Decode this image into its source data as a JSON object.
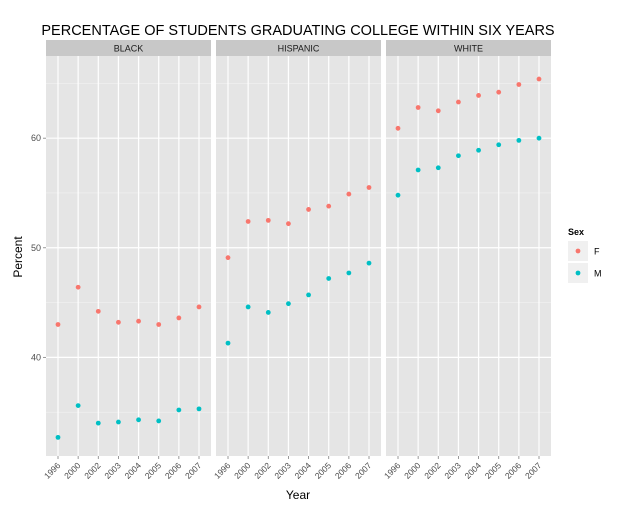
{
  "chart_data": {
    "type": "scatter",
    "title": "PERCENTAGE OF STUDENTS GRADUATING COLLEGE WITHIN SIX YEARS",
    "xlabel": "Year",
    "ylabel": "Percent",
    "ylim": [
      31,
      67.5
    ],
    "y_ticks": [
      40,
      50,
      60
    ],
    "x": [
      "1996",
      "2000",
      "2002",
      "2003",
      "2004",
      "2005",
      "2006",
      "2007"
    ],
    "grid": true,
    "legend": {
      "title": "Sex",
      "position": "right",
      "entries": [
        {
          "label": "F",
          "color": "#F8766D"
        },
        {
          "label": "M",
          "color": "#00BFC4"
        }
      ]
    },
    "colors": {
      "F": "#F8766D",
      "M": "#00BFC4"
    },
    "facets": [
      {
        "name": "BLACK",
        "series": [
          {
            "name": "F",
            "values": [
              43.0,
              46.4,
              44.2,
              43.2,
              43.3,
              43.0,
              43.6,
              44.6
            ]
          },
          {
            "name": "M",
            "values": [
              32.7,
              35.6,
              34.0,
              34.1,
              34.3,
              34.2,
              35.2,
              35.3
            ]
          }
        ]
      },
      {
        "name": "HISPANIC",
        "series": [
          {
            "name": "F",
            "values": [
              49.1,
              52.4,
              52.5,
              52.2,
              53.5,
              53.8,
              54.9,
              55.5
            ]
          },
          {
            "name": "M",
            "values": [
              41.3,
              44.6,
              44.1,
              44.9,
              45.7,
              47.2,
              47.7,
              48.6
            ]
          }
        ]
      },
      {
        "name": "WHITE",
        "series": [
          {
            "name": "F",
            "values": [
              60.9,
              62.8,
              62.5,
              63.3,
              63.9,
              64.2,
              64.9,
              65.4
            ]
          },
          {
            "name": "M",
            "values": [
              54.8,
              57.1,
              57.3,
              58.4,
              58.9,
              59.4,
              59.8,
              60.0
            ]
          }
        ]
      }
    ]
  }
}
